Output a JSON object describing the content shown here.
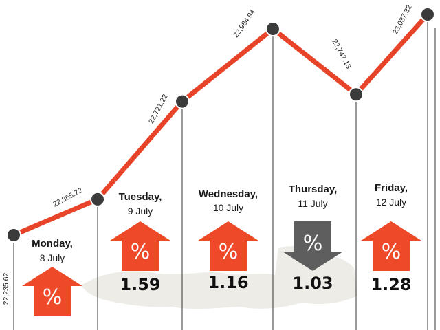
{
  "colors": {
    "line": "#e8442a",
    "marker": "#3b3b3b",
    "up_arrow": "#ee4a2a",
    "down_arrow": "#5e5e5e",
    "divider": "#333333",
    "map": "#eeece6"
  },
  "chart_data": {
    "type": "line",
    "series": [
      {
        "points": [
          {
            "x": "start",
            "value": 22235.62,
            "label": "22,235.62"
          },
          {
            "x": "Monday",
            "value": 22365.72,
            "label": "22,365.72"
          },
          {
            "x": "Tuesday",
            "value": 22721.22,
            "label": "22,721.22"
          },
          {
            "x": "Wednesday",
            "value": 22984.94,
            "label": "22,984.94"
          },
          {
            "x": "Thursday",
            "value": 22747.13,
            "label": "22,747.13"
          },
          {
            "x": "Friday",
            "value": 23037.32,
            "label": "23,037.32"
          }
        ]
      }
    ],
    "days": [
      {
        "day": "Monday,",
        "date": "8 July",
        "direction": "up",
        "percent_glyph": "%",
        "change": ""
      },
      {
        "day": "Tuesday,",
        "date": "9 July",
        "direction": "up",
        "percent_glyph": "%",
        "change": "1.59"
      },
      {
        "day": "Wednesday,",
        "date": "10 July",
        "direction": "up",
        "percent_glyph": "%",
        "change": "1.16"
      },
      {
        "day": "Thursday,",
        "date": "11 July",
        "direction": "down",
        "percent_glyph": "%",
        "change": "1.03"
      },
      {
        "day": "Friday,",
        "date": "12 July",
        "direction": "up",
        "percent_glyph": "%",
        "change": "1.28"
      }
    ],
    "grid": false,
    "legend": "none"
  }
}
